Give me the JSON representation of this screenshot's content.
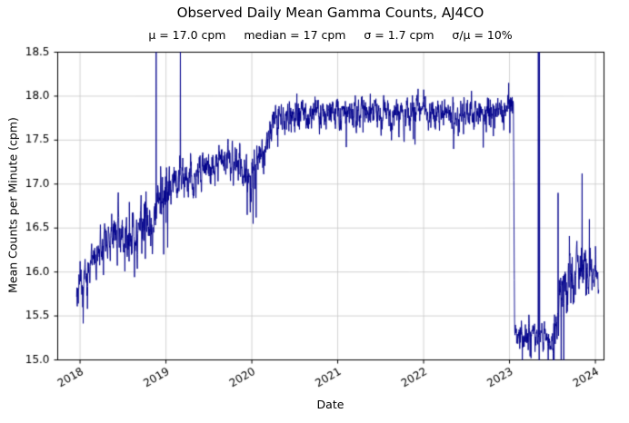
{
  "chart_data": {
    "type": "line",
    "title": "Observed Daily Mean Gamma Counts, AJ4CO",
    "subtitle": "μ = 17.0 cpm     median = 17 cpm     σ = 1.7 cpm     σ/μ = 10%",
    "summary_stats": {
      "mu": "17.0 cpm",
      "median": "17 cpm",
      "sigma": "1.7 cpm",
      "sigma_over_mu": "10%"
    },
    "xlabel": "Date",
    "ylabel": "Mean Counts per Minute (cpm)",
    "xlim": [
      2017.74,
      2024.1
    ],
    "ylim": [
      15.0,
      18.5
    ],
    "xticks": [
      2018,
      2019,
      2020,
      2021,
      2022,
      2023,
      2024
    ],
    "xtick_labels": [
      "2018",
      "2019",
      "2020",
      "2021",
      "2022",
      "2023",
      "2024"
    ],
    "yticks": [
      15.0,
      15.5,
      16.0,
      16.5,
      17.0,
      17.5,
      18.0,
      18.5
    ],
    "ytick_labels": [
      "15.0",
      "15.5",
      "16.0",
      "16.5",
      "17.0",
      "17.5",
      "18.0",
      "18.5"
    ],
    "grid": true,
    "legend": "none",
    "line_color": "#00008b",
    "grid_color": "#c8c8c8",
    "axis_color": "#000000",
    "background": "#ffffff",
    "seed": 11,
    "x_start": 2017.96,
    "x_end": 2024.04,
    "points_per_year": 365,
    "trend": [
      [
        2017.96,
        15.82,
        0.1
      ],
      [
        2018.05,
        15.95,
        0.1
      ],
      [
        2018.15,
        16.1,
        0.09
      ],
      [
        2018.3,
        16.3,
        0.1
      ],
      [
        2018.45,
        16.47,
        0.11
      ],
      [
        2018.6,
        16.42,
        0.14
      ],
      [
        2018.72,
        16.5,
        0.15
      ],
      [
        2018.82,
        16.58,
        0.13
      ],
      [
        2018.92,
        16.75,
        0.13
      ],
      [
        2019.0,
        16.88,
        0.13
      ],
      [
        2019.1,
        17.0,
        0.1
      ],
      [
        2019.3,
        17.08,
        0.1
      ],
      [
        2019.5,
        17.18,
        0.1
      ],
      [
        2019.7,
        17.28,
        0.1
      ],
      [
        2019.9,
        17.22,
        0.13
      ],
      [
        2020.0,
        17.15,
        0.16
      ],
      [
        2020.1,
        17.32,
        0.13
      ],
      [
        2020.22,
        17.6,
        0.11
      ],
      [
        2020.35,
        17.78,
        0.09
      ],
      [
        2020.6,
        17.8,
        0.09
      ],
      [
        2021.5,
        17.8,
        0.09
      ],
      [
        2022.5,
        17.8,
        0.09
      ],
      [
        2022.95,
        17.85,
        0.1
      ],
      [
        2023.045,
        17.95,
        0.1
      ],
      [
        2023.06,
        15.4,
        0.08
      ],
      [
        2023.1,
        15.3,
        0.08
      ],
      [
        2023.28,
        15.27,
        0.08
      ],
      [
        2023.42,
        15.3,
        0.08
      ],
      [
        2023.5,
        15.15,
        0.1
      ],
      [
        2023.57,
        15.6,
        0.15
      ],
      [
        2023.65,
        15.95,
        0.15
      ],
      [
        2023.8,
        15.95,
        0.15
      ],
      [
        2023.9,
        16.05,
        0.15
      ],
      [
        2024.0,
        15.95,
        0.12
      ],
      [
        2024.04,
        15.85,
        0.1
      ]
    ],
    "events": [
      {
        "x": 2018.03,
        "y": 15.6
      },
      {
        "x": 2018.57,
        "y": 16.12
      },
      {
        "x": 2018.76,
        "y": 16.15
      },
      {
        "x": 2018.885,
        "y": 18.65
      },
      {
        "x": 2018.975,
        "y": 16.2
      },
      {
        "x": 2019.02,
        "y": 16.28
      },
      {
        "x": 2019.168,
        "y": 18.7
      },
      {
        "x": 2019.945,
        "y": 16.65
      },
      {
        "x": 2020.015,
        "y": 16.55
      },
      {
        "x": 2020.05,
        "y": 16.62
      },
      {
        "x": 2021.1,
        "y": 17.42
      },
      {
        "x": 2021.9,
        "y": 17.45
      },
      {
        "x": 2022.35,
        "y": 17.4
      },
      {
        "x": 2022.99,
        "y": 18.15
      },
      {
        "x": 2023.15,
        "y": 15.0
      },
      {
        "x": 2023.25,
        "y": 15.02
      },
      {
        "x": 2023.335,
        "y": 18.65
      },
      {
        "x": 2023.347,
        "y": 14.85,
        "y2": 18.6
      },
      {
        "x": 2023.45,
        "y": 15.0
      },
      {
        "x": 2023.52,
        "y": 14.9
      },
      {
        "x": 2023.565,
        "y": 16.9
      },
      {
        "x": 2023.6,
        "y": 15.0
      },
      {
        "x": 2023.63,
        "y": 14.95
      },
      {
        "x": 2023.845,
        "y": 17.12
      },
      {
        "x": 2023.93,
        "y": 16.6
      }
    ]
  }
}
